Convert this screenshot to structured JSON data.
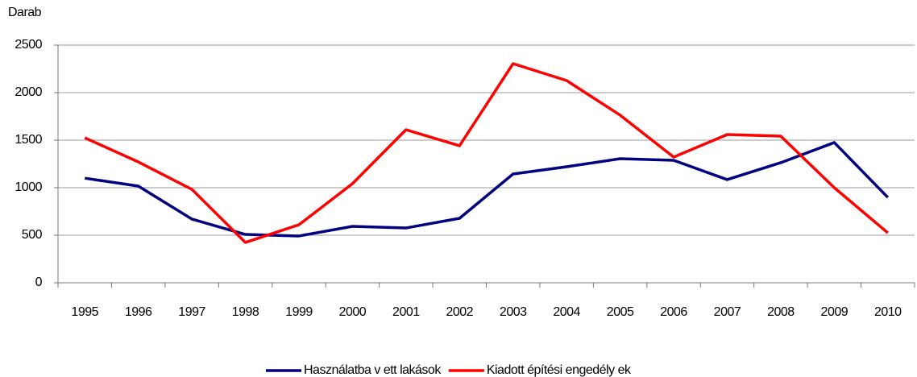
{
  "chart_data": {
    "type": "line",
    "y_label": "Darab",
    "categories": [
      "1995",
      "1996",
      "1997",
      "1998",
      "1999",
      "2000",
      "2001",
      "2002",
      "2003",
      "2004",
      "2005",
      "2006",
      "2007",
      "2008",
      "2009",
      "2010"
    ],
    "series": [
      {
        "name": "Használatba v ett lakások",
        "color": "#000080",
        "values": [
          1100,
          1017,
          670,
          508,
          492,
          593,
          576,
          678,
          1144,
          1220,
          1305,
          1288,
          1085,
          1263,
          1475,
          898
        ]
      },
      {
        "name": "Kiadott építési engedély ek",
        "color": "#ff0000",
        "values": [
          1525,
          1271,
          983,
          424,
          610,
          1042,
          1610,
          1441,
          2305,
          2127,
          1763,
          1322,
          1559,
          1542,
          1000,
          525
        ]
      }
    ],
    "ylim": [
      0,
      2500
    ],
    "yticks": [
      0,
      500,
      1000,
      1500,
      2000,
      2500
    ],
    "grid": true,
    "legend": "bottom"
  }
}
